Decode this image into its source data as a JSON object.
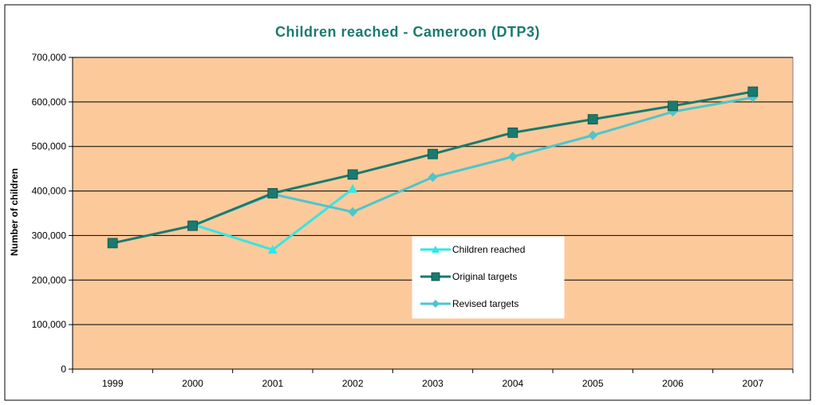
{
  "chart_data": {
    "type": "line",
    "title": "Children reached - Cameroon (DTP3)",
    "xlabel": "",
    "ylabel": "Number of children",
    "categories": [
      "1999",
      "2000",
      "2001",
      "2002",
      "2003",
      "2004",
      "2005",
      "2006",
      "2007"
    ],
    "y_ticks": [
      "0",
      "100,000",
      "200,000",
      "300,000",
      "400,000",
      "500,000",
      "600,000",
      "700,000"
    ],
    "ylim": [
      0,
      700000
    ],
    "grid": true,
    "legend_position": "center-right",
    "series": [
      {
        "name": "Children reached",
        "marker": "triangle",
        "color": "#33e6e6",
        "values": [
          null,
          325000,
          268000,
          405000,
          null,
          null,
          null,
          null,
          null
        ]
      },
      {
        "name": "Original targets",
        "marker": "square",
        "color": "#1a7a6e",
        "values": [
          283000,
          322000,
          395000,
          437000,
          483000,
          531000,
          561000,
          591000,
          623000
        ]
      },
      {
        "name": "Revised targets",
        "marker": "diamond",
        "color": "#4cc6cc",
        "values": [
          null,
          322000,
          393000,
          353000,
          431000,
          477000,
          525000,
          578000,
          610000
        ]
      }
    ]
  },
  "colors": {
    "plot_background": "#fcc99b",
    "title": "#1a7a6e",
    "gridline": "#000000"
  }
}
